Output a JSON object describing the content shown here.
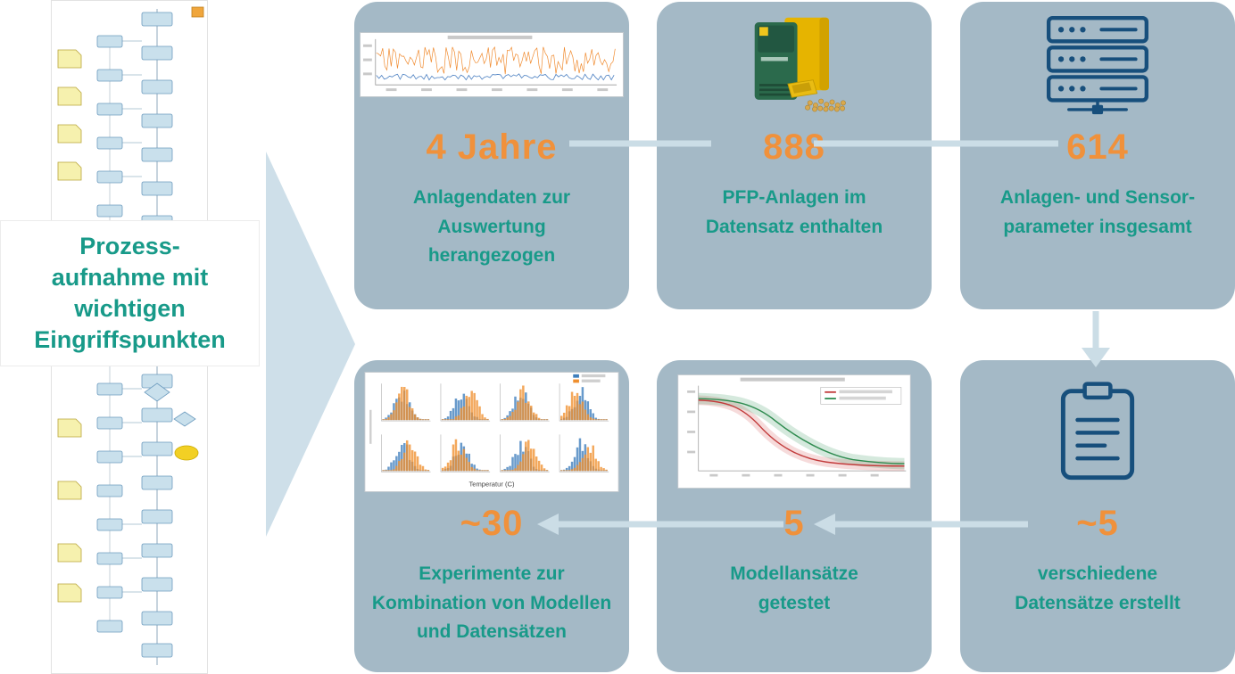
{
  "palette": {
    "card_background": "#A4B9C6",
    "arrow_blue": "#CBDDE6",
    "number_orange": "#F0913B",
    "caption_teal": "#189A89",
    "icon_navy": "#174F7C"
  },
  "process_label": {
    "text": "Prozess-\naufnahme mit\nwichtigen\nEingriffspunkten"
  },
  "cards": [
    {
      "number": "4 Jahre",
      "caption": "Anlagendaten zur\nAuswertung\nherangezogen",
      "media": "timeseries-chart-thumbnail"
    },
    {
      "number": "888",
      "caption": "PFP-Anlagen im\nDatensatz enthalten",
      "media": "pellet-boiler-image"
    },
    {
      "number": "614",
      "caption": "Anlagen- und Sensor-\nparameter insgesamt",
      "media": "server-stack-icon"
    },
    {
      "number": "~30",
      "caption": "Experimente zur\nKombination von Modellen\nund Datensätzen",
      "media": "histogram-grid-thumbnail",
      "axis_label": "Temperatur (C)"
    },
    {
      "number": "5",
      "caption": "Modellansätze\ngetestet",
      "media": "threshold-curves-thumbnail"
    },
    {
      "number": "~5",
      "caption": "verschiedene\nDatensätze erstellt",
      "media": "clipboard-icon"
    }
  ],
  "icons": {
    "server": "server-stack-icon",
    "clipboard": "clipboard-icon",
    "flow_arrows": "right-arrow, down-arrow, left-arrow"
  }
}
